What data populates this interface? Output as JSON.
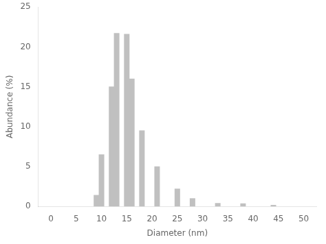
{
  "chart_data": {
    "type": "bar",
    "x": [
      9,
      10,
      12,
      13,
      15,
      16,
      18,
      21,
      25,
      28,
      33,
      38,
      44
    ],
    "values": [
      1.4,
      6.5,
      15.0,
      21.7,
      21.6,
      16.0,
      9.5,
      5.0,
      2.2,
      1.0,
      0.4,
      0.35,
      0.15
    ],
    "color": "#c0c0c0",
    "xlabel": "Diameter (nm)",
    "ylabel": "Abundance (%)",
    "xlim": [
      0,
      50
    ],
    "ylim": [
      0,
      25
    ],
    "xticks": [
      0,
      5,
      10,
      15,
      20,
      25,
      30,
      35,
      40,
      45,
      50
    ],
    "yticks": [
      0,
      5,
      10,
      15,
      20,
      25
    ],
    "grid": false
  }
}
